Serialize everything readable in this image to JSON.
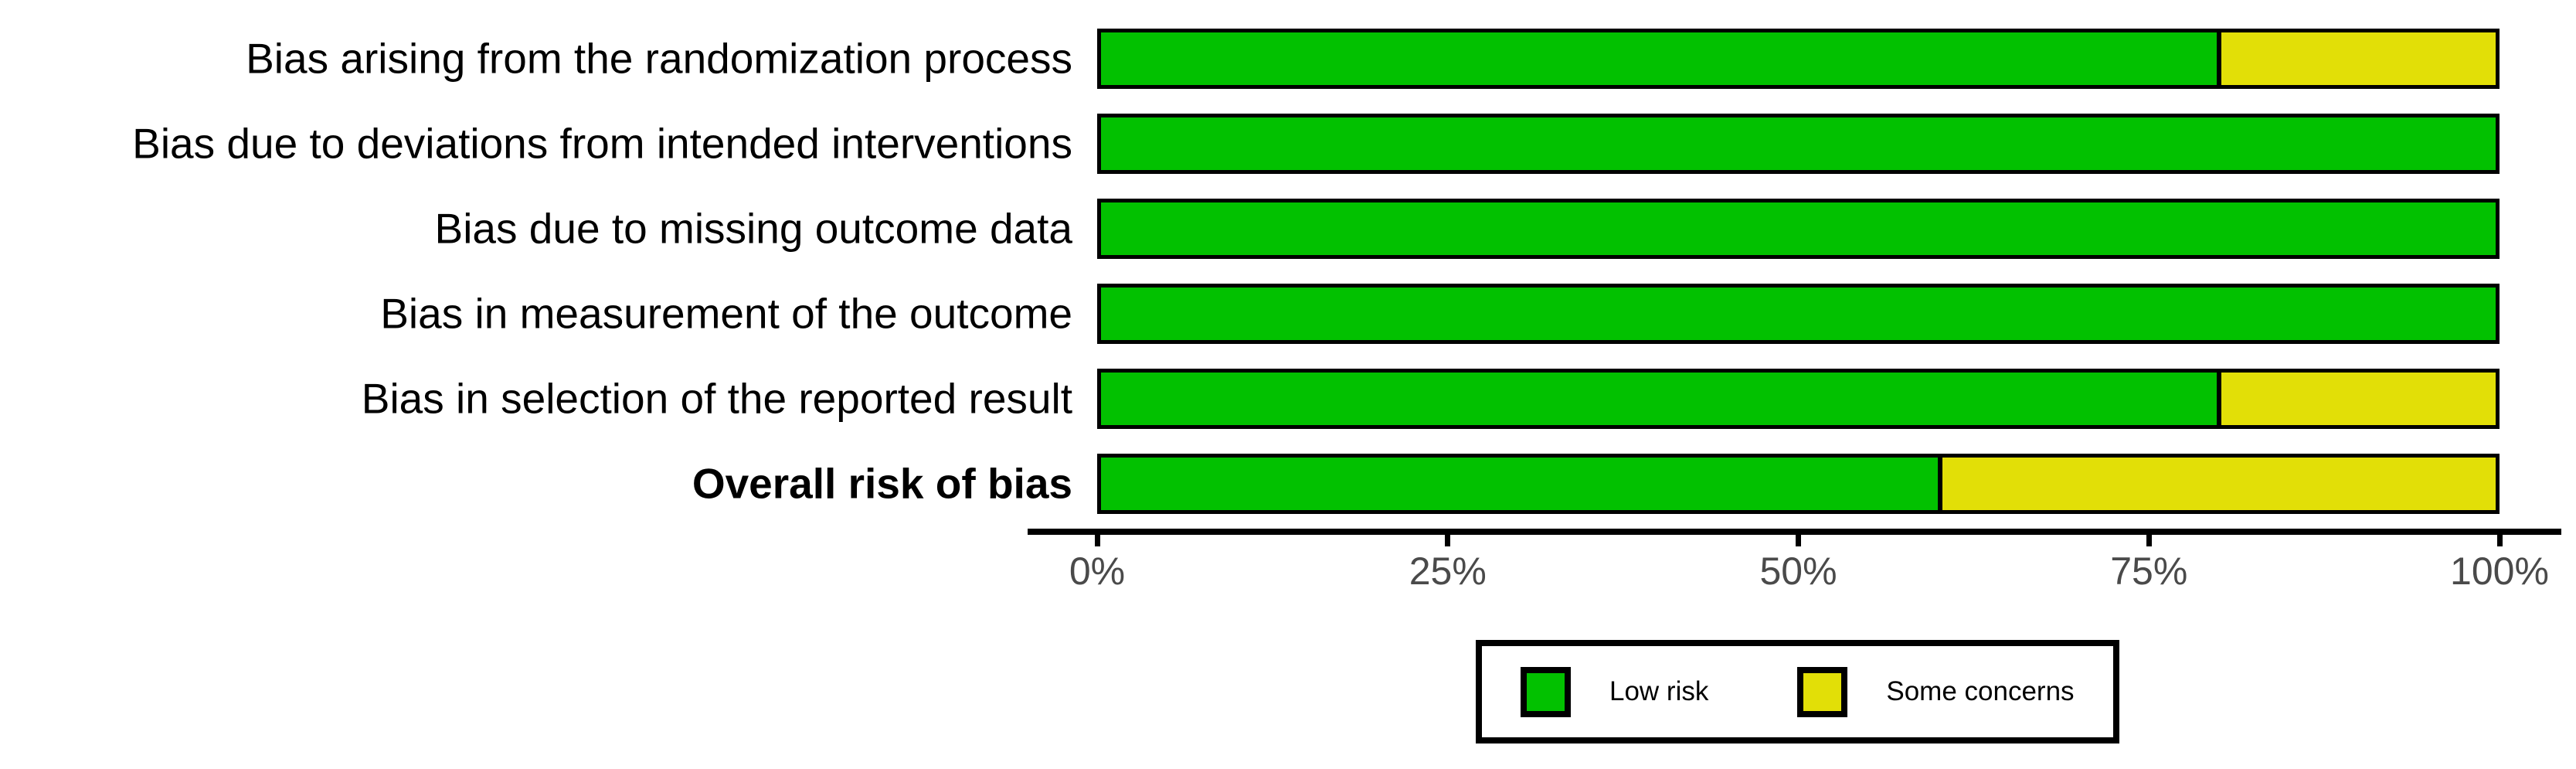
{
  "chart_data": {
    "type": "bar",
    "variant": "horizontal-stacked-percentage",
    "title": "",
    "categories": [
      "Bias arising from the randomization process",
      "Bias due to deviations from intended interventions",
      "Bias due to missing outcome data",
      "Bias in measurement of the outcome",
      "Bias in selection of the reported result",
      "Overall risk of bias"
    ],
    "bold_categories": [
      "Overall risk of bias"
    ],
    "series": [
      {
        "name": "Low risk",
        "color": "#02C100",
        "values": [
          80,
          100,
          100,
          100,
          80,
          60
        ]
      },
      {
        "name": "Some concerns",
        "color": "#E2DF07",
        "values": [
          20,
          0,
          0,
          0,
          20,
          40
        ]
      }
    ],
    "x_axis": {
      "range": [
        0,
        100
      ],
      "ticks": [
        0,
        25,
        50,
        75,
        100
      ],
      "tick_labels": [
        "0%",
        "25%",
        "50%",
        "75%",
        "100%"
      ],
      "grid": false
    },
    "legend": {
      "position": "bottom",
      "entries": [
        {
          "label": "Low risk",
          "color": "#02C100"
        },
        {
          "label": "Some concerns",
          "color": "#E2DF07"
        }
      ]
    }
  },
  "colors": {
    "low_risk": "#02C100",
    "some_concerns": "#E2DF07",
    "bar_border": "#000000",
    "axis_line": "#000000",
    "tick_label_text": "#4A4A4A",
    "category_label_text": "#000000",
    "background": "#FFFFFF"
  }
}
